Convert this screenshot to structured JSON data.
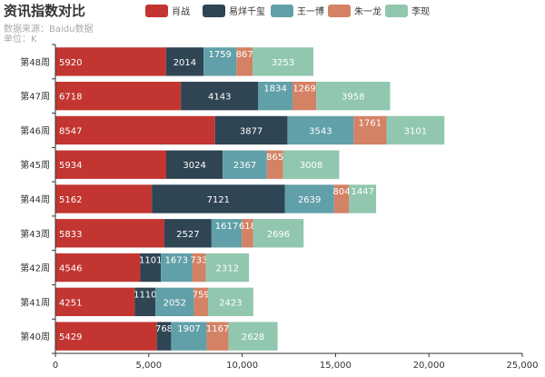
{
  "chart_data": {
    "type": "bar",
    "orientation": "horizontal",
    "stacked": true,
    "title": "资讯指数对比",
    "subtitle_lines": [
      "数据来源：Baidu数据",
      "单位：K"
    ],
    "categories": [
      "第48周",
      "第47周",
      "第46周",
      "第45周",
      "第44周",
      "第43周",
      "第42周",
      "第41周",
      "第40周"
    ],
    "series": [
      {
        "name": "肖战",
        "color": "#c23531",
        "values": [
          5920,
          6718,
          8547,
          5934,
          5162,
          5833,
          4546,
          4251,
          5429
        ]
      },
      {
        "name": "易烊千玺",
        "color": "#2f4554",
        "values": [
          2014,
          4143,
          3877,
          3024,
          7121,
          2527,
          1101,
          1110,
          768
        ]
      },
      {
        "name": "王一博",
        "color": "#61a0a8",
        "values": [
          1759,
          1834,
          3543,
          2367,
          2639,
          1617,
          1673,
          2052,
          1907
        ]
      },
      {
        "name": "朱一龙",
        "color": "#d48265",
        "values": [
          867,
          1269,
          1761,
          865,
          804,
          618,
          733,
          759,
          1167
        ]
      },
      {
        "name": "李现",
        "color": "#91c7ae",
        "values": [
          3253,
          3958,
          3101,
          3008,
          1447,
          2696,
          2312,
          2423,
          2628
        ]
      }
    ],
    "xlim": [
      0,
      25000
    ],
    "xticks": [
      0,
      5000,
      10000,
      15000,
      20000,
      25000
    ],
    "xtick_labels": [
      "0",
      "5,000",
      "10,000",
      "15,000",
      "20,000",
      "25,000"
    ],
    "legend_position": "top-center",
    "grid": false
  }
}
